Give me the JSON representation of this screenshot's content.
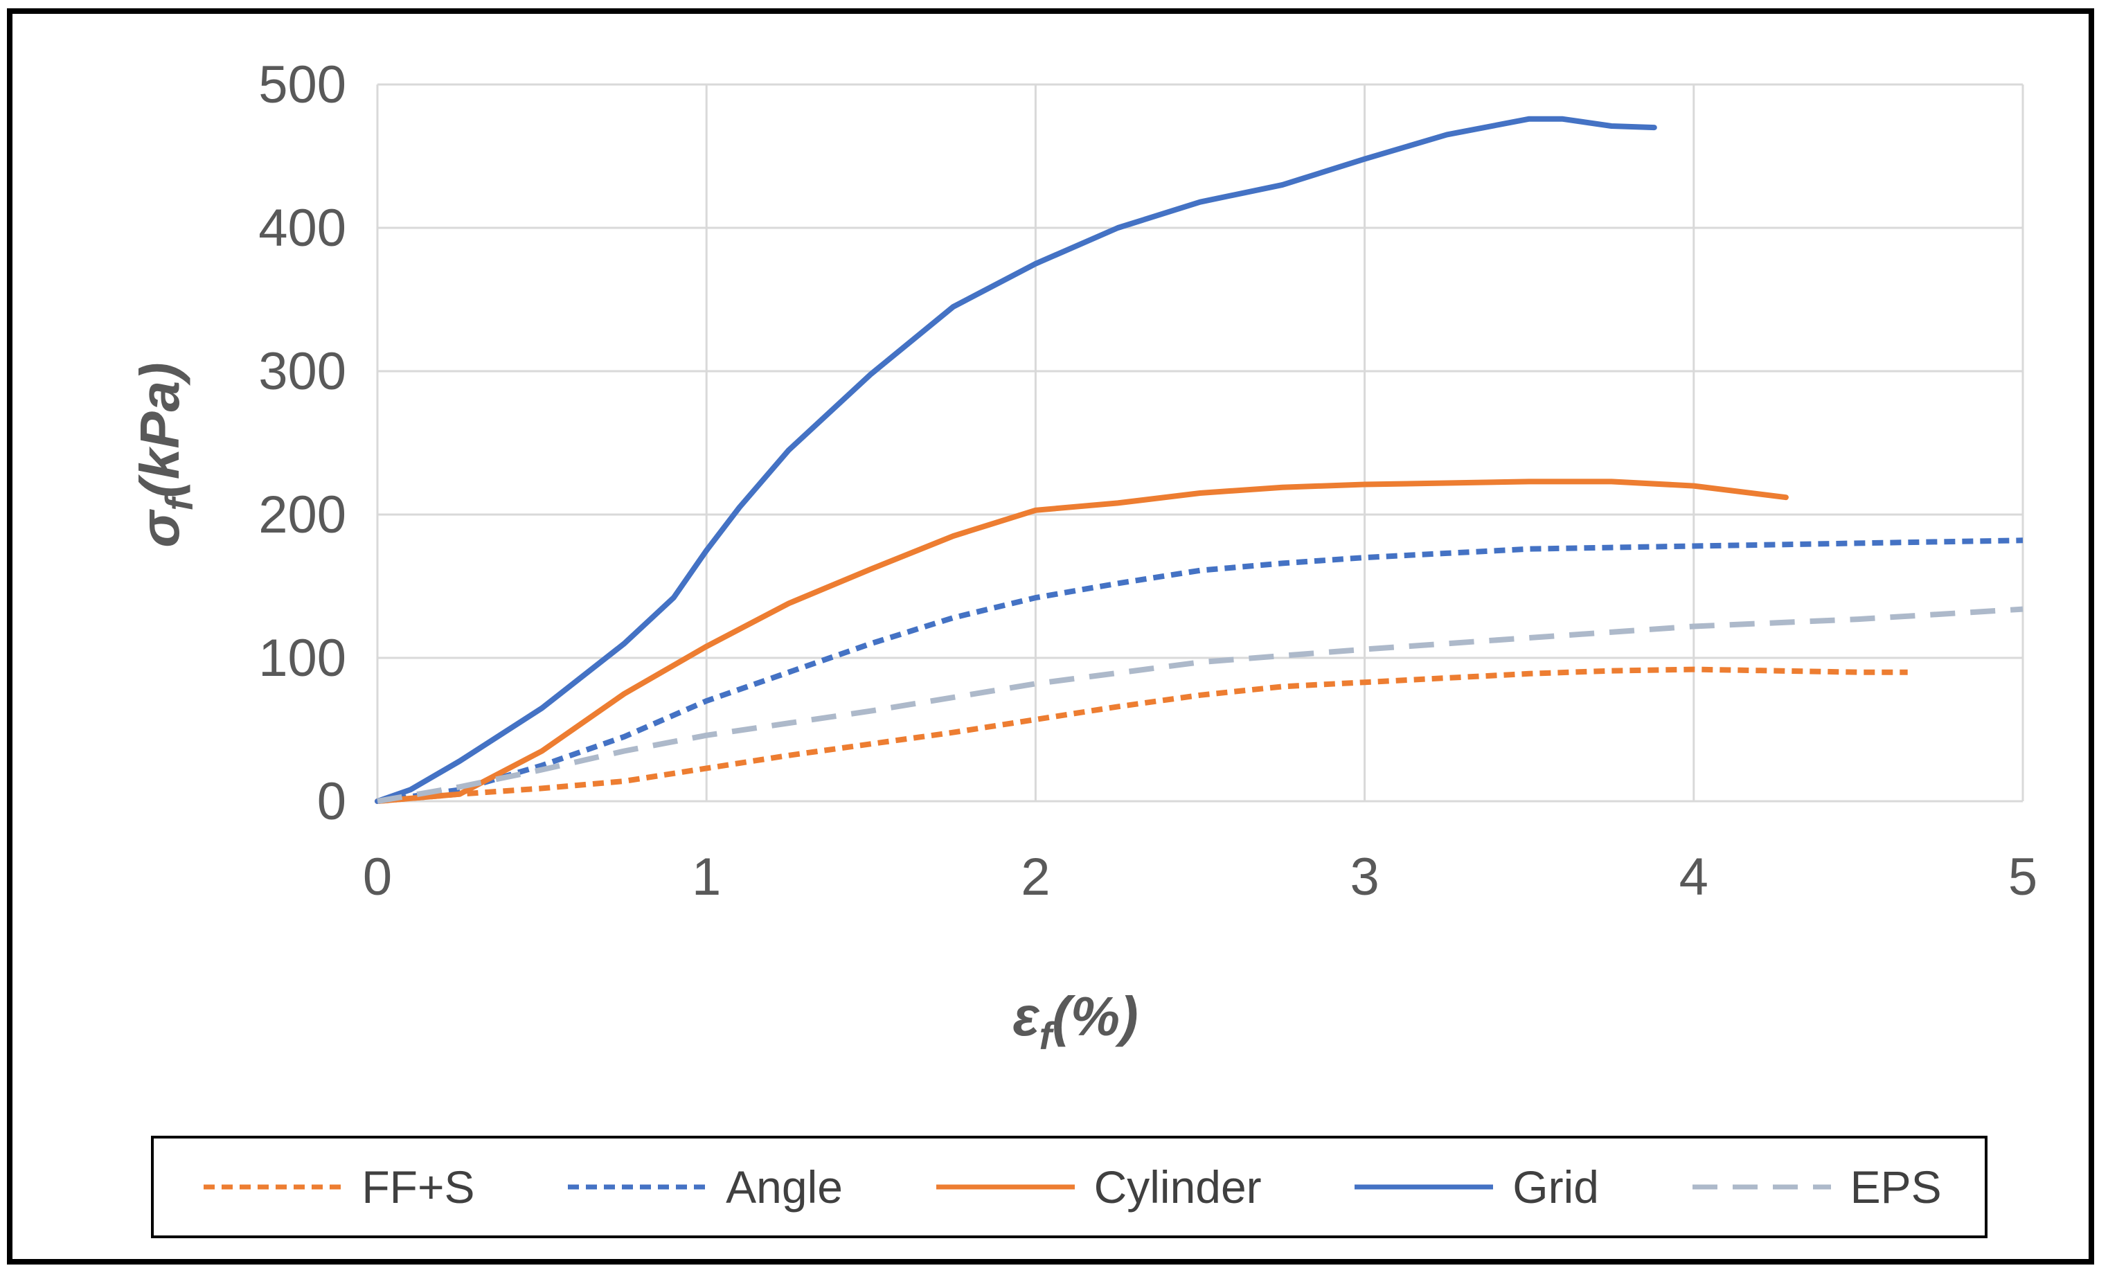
{
  "chart_data": {
    "type": "line",
    "title": "",
    "xlabel_main": "ε",
    "xlabel_sub": "f",
    "xlabel_rest": "(%)",
    "ylabel_main": "σ",
    "ylabel_sub": "f",
    "ylabel_rest": "(kPa)",
    "xlim": [
      0,
      5
    ],
    "ylim": [
      0,
      500
    ],
    "xticks": [
      0,
      1,
      2,
      3,
      4,
      5
    ],
    "yticks": [
      0,
      100,
      200,
      300,
      400,
      500
    ],
    "grid": true,
    "legend_position": "bottom",
    "series": [
      {
        "name": "FF+S",
        "color": "#ED7D31",
        "dash": "short-dash",
        "x": [
          0,
          0.25,
          0.5,
          0.75,
          1.0,
          1.25,
          1.5,
          1.75,
          2.0,
          2.25,
          2.5,
          2.75,
          3.0,
          3.25,
          3.5,
          3.75,
          4.0,
          4.25,
          4.5,
          4.65
        ],
        "y": [
          0,
          5,
          9,
          14,
          23,
          32,
          40,
          48,
          57,
          66,
          74,
          80,
          83,
          86,
          89,
          91,
          92,
          91,
          90,
          90
        ]
      },
      {
        "name": "Angle",
        "color": "#4472C4",
        "dash": "short-dash",
        "x": [
          0,
          0.25,
          0.5,
          0.75,
          1.0,
          1.25,
          1.5,
          1.75,
          2.0,
          2.25,
          2.5,
          2.75,
          3.0,
          3.25,
          3.5,
          3.75,
          4.0,
          4.25,
          4.5,
          4.75,
          5.0
        ],
        "y": [
          0,
          8,
          25,
          45,
          70,
          90,
          110,
          128,
          142,
          152,
          161,
          166,
          170,
          173,
          176,
          177,
          178,
          179,
          180,
          181,
          182
        ]
      },
      {
        "name": "Cylinder",
        "color": "#ED7D31",
        "dash": "solid",
        "x": [
          0,
          0.25,
          0.5,
          0.75,
          1.0,
          1.25,
          1.5,
          1.75,
          2.0,
          2.25,
          2.5,
          2.75,
          3.0,
          3.25,
          3.5,
          3.75,
          4.0,
          4.28
        ],
        "y": [
          0,
          5,
          35,
          75,
          108,
          138,
          162,
          185,
          203,
          208,
          215,
          219,
          221,
          222,
          223,
          223,
          220,
          212
        ]
      },
      {
        "name": "Grid",
        "color": "#4472C4",
        "dash": "solid",
        "x": [
          0,
          0.1,
          0.25,
          0.5,
          0.75,
          0.9,
          1.0,
          1.1,
          1.25,
          1.5,
          1.75,
          2.0,
          2.25,
          2.5,
          2.75,
          3.0,
          3.25,
          3.5,
          3.6,
          3.75,
          3.88
        ],
        "y": [
          0,
          8,
          28,
          65,
          110,
          142,
          175,
          205,
          245,
          298,
          345,
          375,
          400,
          418,
          430,
          448,
          465,
          476,
          476,
          471,
          470
        ]
      },
      {
        "name": "EPS",
        "color": "#ADB9CA",
        "dash": "long-dash",
        "x": [
          0,
          0.25,
          0.5,
          0.75,
          1.0,
          1.5,
          2.0,
          2.5,
          3.0,
          3.5,
          4.0,
          4.5,
          5.0
        ],
        "y": [
          0,
          10,
          22,
          35,
          46,
          63,
          82,
          97,
          106,
          114,
          122,
          127,
          134
        ]
      }
    ]
  }
}
